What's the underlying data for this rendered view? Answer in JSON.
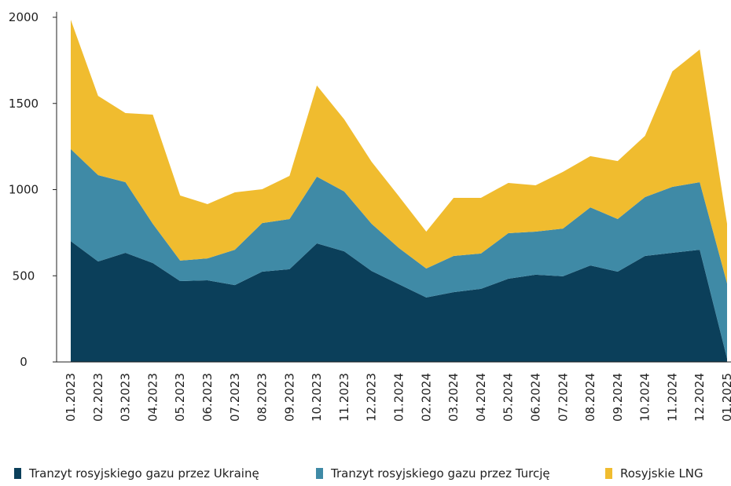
{
  "chart_data": {
    "type": "stacked_area",
    "categories": [
      "01.2023",
      "02.2023",
      "03.2023",
      "04.2023",
      "05.2023",
      "06.2023",
      "07.2023",
      "08.2023",
      "09.2023",
      "10.2023",
      "11.2023",
      "12.2023",
      "01.2024",
      "02.2024",
      "03.2024",
      "04.2024",
      "05.2024",
      "06.2024",
      "07.2024",
      "08.2024",
      "09.2024",
      "10.2024",
      "11.2024",
      "12.2024",
      "01.2025"
    ],
    "series": [
      {
        "name": "Tranzyt rosyjskiego gazu przez Ukrainę",
        "color": "#0b3f5a",
        "values": [
          701,
          583,
          633,
          574,
          469,
          474,
          446,
          524,
          538,
          688,
          642,
          528,
          451,
          374,
          405,
          424,
          483,
          506,
          497,
          560,
          524,
          615,
          633,
          651,
          20
        ]
      },
      {
        "name": "Tranzyt rosyjskiego gazu przez Turcję",
        "color": "#3f8aa6",
        "values": [
          534,
          501,
          410,
          228,
          119,
          127,
          205,
          282,
          291,
          387,
          347,
          274,
          210,
          168,
          210,
          205,
          264,
          250,
          277,
          337,
          305,
          342,
          383,
          392,
          436
        ]
      },
      {
        "name": "Rosyjskie LNG",
        "color": "#f0bc2f",
        "values": [
          751,
          460,
          401,
          633,
          378,
          315,
          333,
          196,
          251,
          529,
          419,
          360,
          300,
          214,
          337,
          323,
          292,
          269,
          329,
          297,
          337,
          355,
          670,
          770,
          346
        ]
      }
    ],
    "ylim": [
      0,
      2000
    ],
    "yticks": [
      0,
      500,
      1000,
      1500,
      2000
    ],
    "grid": false
  }
}
